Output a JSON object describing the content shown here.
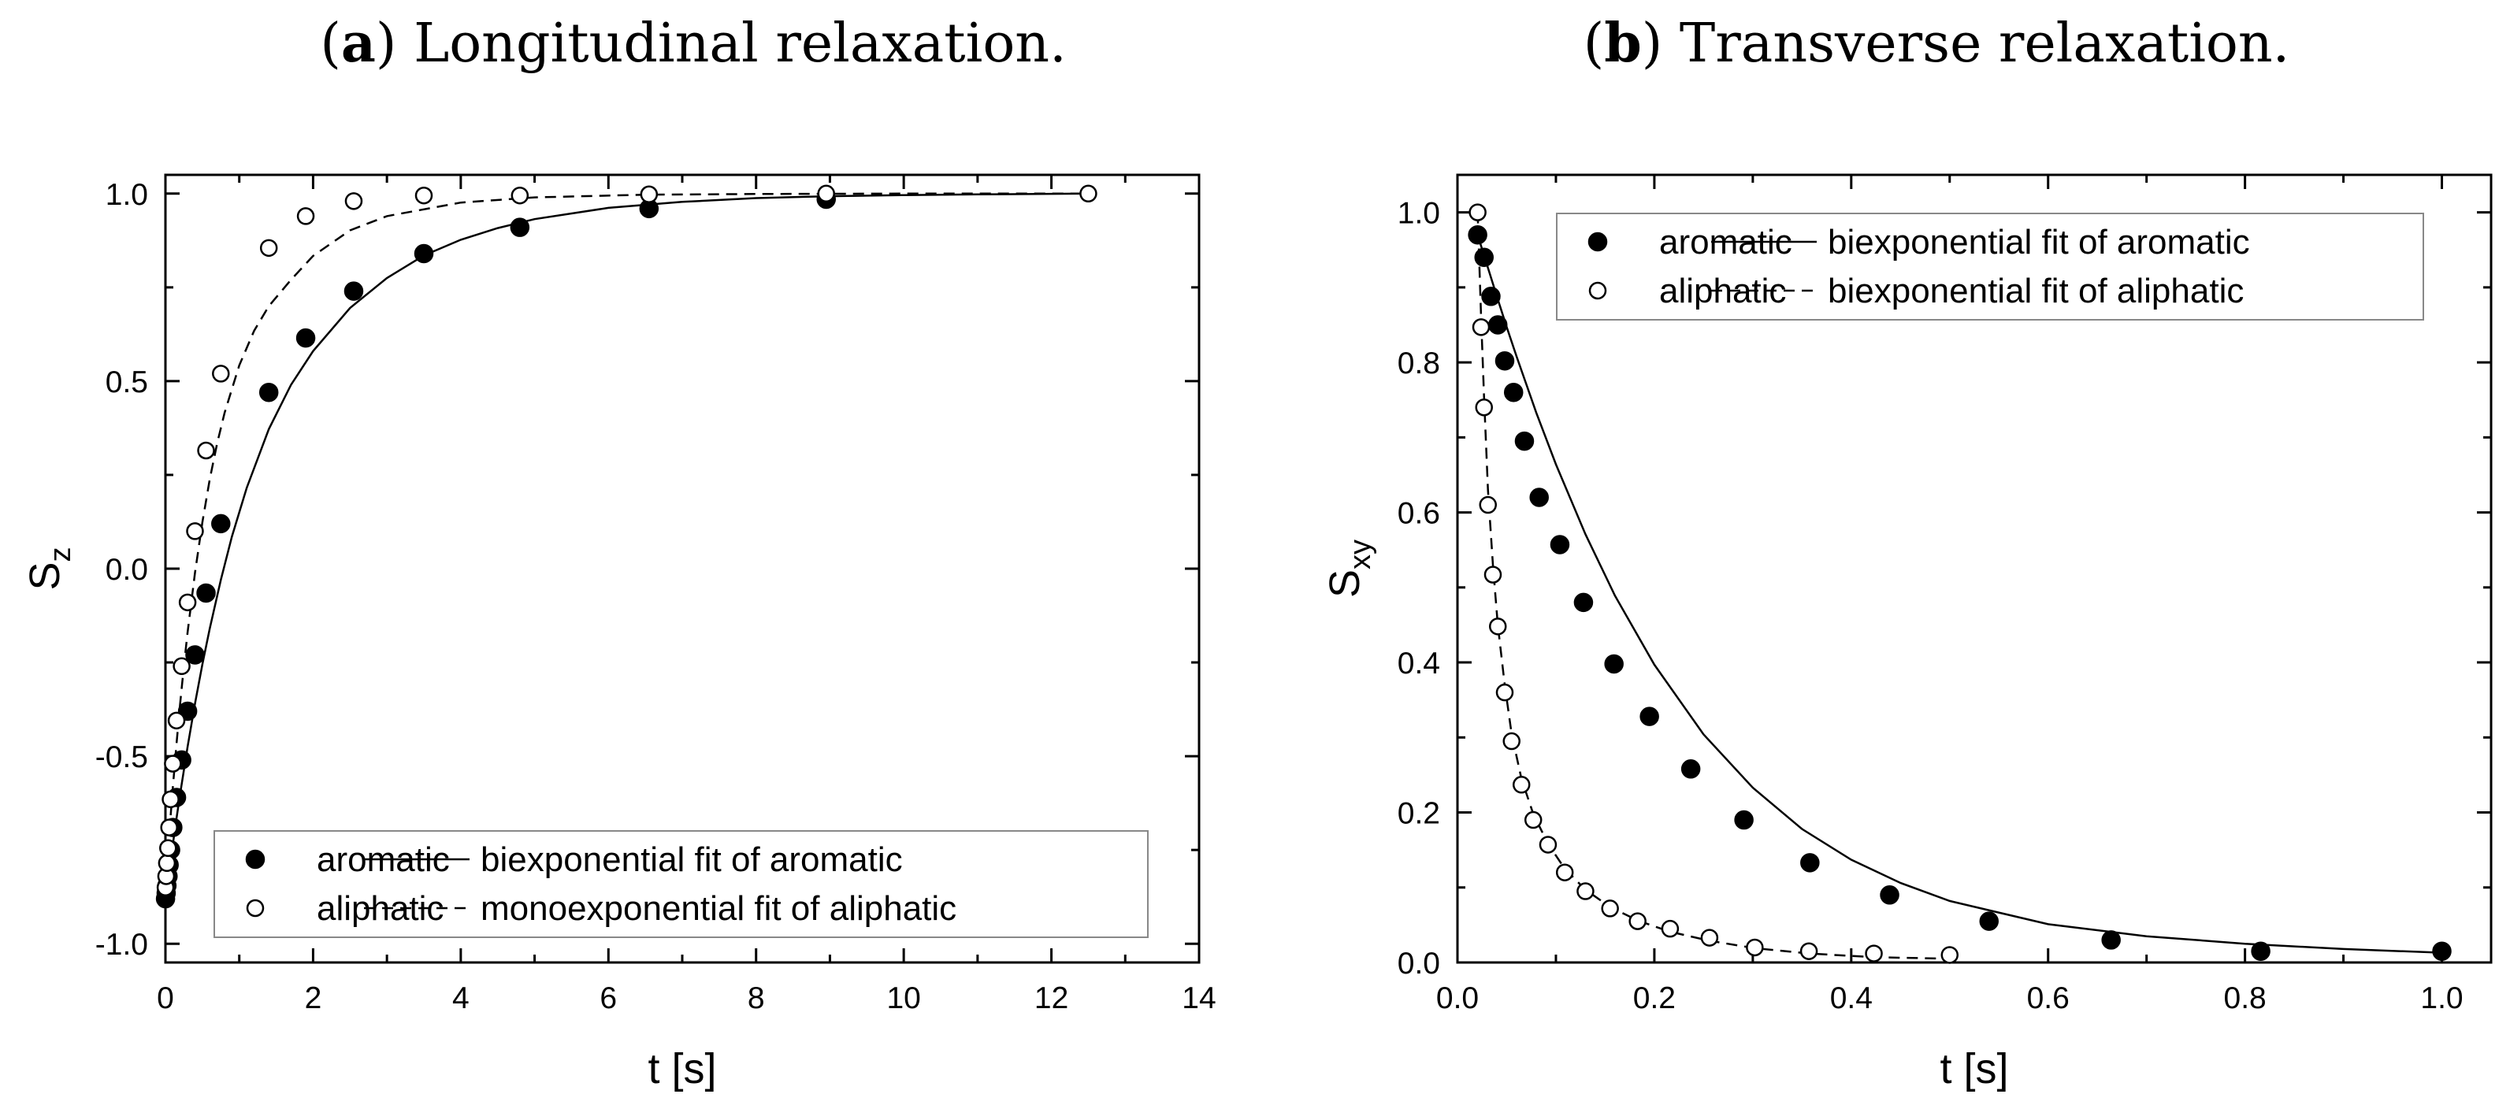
{
  "chart_data": [
    {
      "type": "scatter",
      "panel_letter": "a",
      "title": "Longitudinal relaxation.",
      "xlabel": "t [s]",
      "ylabel": "S",
      "ylabel_sub": "z",
      "xlim": [
        0,
        14
      ],
      "ylim": [
        -1.05,
        1.05
      ],
      "xticks": [
        0,
        2,
        4,
        6,
        8,
        10,
        12,
        14
      ],
      "xtick_labels": [
        "0",
        "2",
        "4",
        "6",
        "8",
        "10",
        "12",
        "14"
      ],
      "yticks": [
        -1.0,
        -0.5,
        0.0,
        0.5,
        1.0
      ],
      "ytick_labels": [
        "-1.0",
        "-0.5",
        "0.0",
        "0.5",
        "1.0"
      ],
      "legend_position": "bottom-right",
      "series": [
        {
          "name": "aromatic",
          "marker": "filled-circle",
          "fit_label": "biexponential fit of aromatic",
          "fit_style": "solid",
          "x": [
            0.001,
            0.01,
            0.02,
            0.035,
            0.05,
            0.07,
            0.1,
            0.15,
            0.22,
            0.3,
            0.4,
            0.55,
            0.75,
            1.4,
            1.9,
            2.55,
            3.5,
            4.8,
            6.55,
            8.95
          ],
          "y": [
            -0.88,
            -0.865,
            -0.845,
            -0.82,
            -0.79,
            -0.75,
            -0.69,
            -0.61,
            -0.51,
            -0.38,
            -0.23,
            -0.065,
            0.12,
            0.47,
            0.615,
            0.74,
            0.84,
            0.91,
            0.96,
            0.985
          ],
          "fit_x": [
            0,
            0.05,
            0.1,
            0.15,
            0.2,
            0.3,
            0.4,
            0.5,
            0.6,
            0.75,
            0.9,
            1.1,
            1.4,
            1.7,
            2.0,
            2.5,
            3.0,
            3.5,
            4.0,
            4.5,
            5.0,
            6.0,
            7.0,
            8.0,
            9.0,
            10.0,
            11.0,
            12.5
          ],
          "fit_y": [
            -0.88,
            -0.805,
            -0.735,
            -0.665,
            -0.6,
            -0.475,
            -0.36,
            -0.255,
            -0.16,
            -0.03,
            0.085,
            0.215,
            0.372,
            0.49,
            0.58,
            0.695,
            0.775,
            0.835,
            0.877,
            0.908,
            0.932,
            0.962,
            0.978,
            0.988,
            0.993,
            0.996,
            0.998,
            1.0
          ]
        },
        {
          "name": "aliphatic",
          "marker": "open-circle",
          "fit_label": "monoexponential fit of aliphatic",
          "fit_style": "dashed",
          "x": [
            0.001,
            0.01,
            0.02,
            0.035,
            0.05,
            0.07,
            0.1,
            0.15,
            0.22,
            0.3,
            0.4,
            0.55,
            0.75,
            1.4,
            1.9,
            2.55,
            3.5,
            4.8,
            6.55,
            8.95,
            12.5
          ],
          "y": [
            -0.85,
            -0.82,
            -0.785,
            -0.745,
            -0.69,
            -0.615,
            -0.52,
            -0.405,
            -0.26,
            -0.09,
            0.1,
            0.315,
            0.52,
            0.855,
            0.94,
            0.98,
            0.995,
            0.995,
            0.998,
            1.0,
            1.0
          ],
          "fit_x": [
            0,
            0.05,
            0.1,
            0.15,
            0.2,
            0.25,
            0.3,
            0.4,
            0.5,
            0.6,
            0.7,
            0.8,
            1.0,
            1.2,
            1.4,
            1.7,
            2.0,
            2.5,
            3.0,
            4.0,
            5.0,
            6.5,
            8.0,
            10.0,
            12.5
          ],
          "fit_y": [
            -0.85,
            -0.71,
            -0.583,
            -0.466,
            -0.359,
            -0.26,
            -0.17,
            -0.011,
            0.124,
            0.238,
            0.334,
            0.415,
            0.542,
            0.634,
            0.7,
            0.77,
            0.834,
            0.902,
            0.94,
            0.976,
            0.99,
            0.997,
            0.999,
            1.0,
            1.0
          ]
        }
      ]
    },
    {
      "type": "scatter",
      "panel_letter": "b",
      "title": "Transverse relaxation.",
      "xlabel": "t [s]",
      "ylabel": "S",
      "ylabel_sub": "xy",
      "xlim": [
        0,
        1.05
      ],
      "ylim": [
        0,
        1.05
      ],
      "xticks": [
        0.0,
        0.2,
        0.4,
        0.6,
        0.8,
        1.0
      ],
      "xtick_labels": [
        "0.0",
        "0.2",
        "0.4",
        "0.6",
        "0.8",
        "1.0"
      ],
      "yticks": [
        0.0,
        0.2,
        0.4,
        0.6,
        0.8,
        1.0
      ],
      "ytick_labels": [
        "0.0",
        "0.2",
        "0.4",
        "0.6",
        "0.8",
        "1.0"
      ],
      "legend_position": "top-right",
      "series": [
        {
          "name": "aromatic",
          "marker": "filled-circle",
          "fit_label": "biexponential fit of aromatic",
          "fit_style": "solid",
          "x": [
            0.0205,
            0.027,
            0.034,
            0.041,
            0.048,
            0.057,
            0.068,
            0.083,
            0.104,
            0.128,
            0.159,
            0.195,
            0.237,
            0.291,
            0.358,
            0.439,
            0.54,
            0.664,
            0.816,
            1.0
          ],
          "y": [
            0.97,
            0.94,
            0.888,
            0.85,
            0.802,
            0.76,
            0.695,
            0.62,
            0.557,
            0.48,
            0.398,
            0.328,
            0.258,
            0.19,
            0.133,
            0.09,
            0.055,
            0.03,
            0.015,
            0.015
          ],
          "fit_x": [
            0.0205,
            0.03,
            0.04,
            0.05,
            0.06,
            0.08,
            0.1,
            0.13,
            0.16,
            0.2,
            0.25,
            0.3,
            0.35,
            0.4,
            0.45,
            0.5,
            0.6,
            0.7,
            0.8,
            0.9,
            1.0
          ],
          "fit_y": [
            0.97,
            0.93,
            0.888,
            0.847,
            0.808,
            0.733,
            0.664,
            0.571,
            0.489,
            0.397,
            0.304,
            0.233,
            0.178,
            0.137,
            0.106,
            0.082,
            0.051,
            0.035,
            0.025,
            0.018,
            0.013
          ]
        },
        {
          "name": "aliphatic",
          "marker": "open-circle",
          "fit_label": "biexponential fit of aliphatic",
          "fit_style": "dashed",
          "x": [
            0.0205,
            0.024,
            0.027,
            0.031,
            0.036,
            0.041,
            0.048,
            0.055,
            0.065,
            0.077,
            0.092,
            0.109,
            0.13,
            0.155,
            0.183,
            0.216,
            0.256,
            0.302,
            0.357,
            0.423,
            0.5
          ],
          "y": [
            1.0,
            0.847,
            0.74,
            0.61,
            0.517,
            0.448,
            0.36,
            0.295,
            0.237,
            0.19,
            0.157,
            0.12,
            0.095,
            0.072,
            0.055,
            0.045,
            0.033,
            0.02,
            0.015,
            0.012,
            0.01
          ],
          "fit_x": [
            0.0205,
            0.024,
            0.027,
            0.031,
            0.036,
            0.041,
            0.048,
            0.055,
            0.065,
            0.077,
            0.092,
            0.109,
            0.13,
            0.155,
            0.183,
            0.216,
            0.256,
            0.302,
            0.357,
            0.423,
            0.5
          ],
          "fit_y": [
            1.0,
            0.86,
            0.755,
            0.63,
            0.53,
            0.45,
            0.37,
            0.305,
            0.245,
            0.198,
            0.158,
            0.125,
            0.097,
            0.074,
            0.056,
            0.041,
            0.029,
            0.019,
            0.012,
            0.007,
            0.005
          ]
        }
      ]
    }
  ]
}
